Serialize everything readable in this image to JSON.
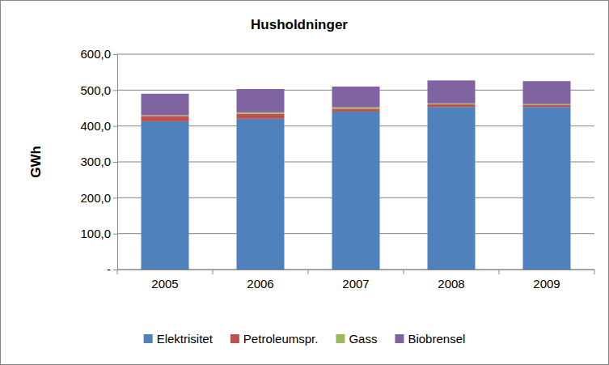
{
  "chart_data": {
    "type": "bar",
    "title": "Husholdninger",
    "y_label": "GWh",
    "categories": [
      "2005",
      "2006",
      "2007",
      "2008",
      "2009"
    ],
    "series": [
      {
        "name": "Elektrisitet",
        "color": "#4f81bd",
        "values": [
          413,
          420,
          440,
          453,
          453
        ]
      },
      {
        "name": "Petroleumspr.",
        "color": "#c0504d",
        "values": [
          15,
          14,
          8,
          7,
          5
        ]
      },
      {
        "name": "Gass",
        "color": "#9bbb59",
        "values": [
          2,
          4,
          4,
          3,
          3
        ]
      },
      {
        "name": "Biobrensel",
        "color": "#8064a2",
        "values": [
          60,
          65,
          58,
          64,
          64
        ]
      }
    ],
    "stacked": true,
    "ylim": [
      0,
      600
    ],
    "yticks": [
      {
        "value": 0,
        "label": "-"
      },
      {
        "value": 100,
        "label": "100,0"
      },
      {
        "value": 200,
        "label": "200,0"
      },
      {
        "value": 300,
        "label": "300,0"
      },
      {
        "value": 400,
        "label": "400,0"
      },
      {
        "value": 500,
        "label": "500,0"
      },
      {
        "value": 600,
        "label": "600,0"
      }
    ],
    "grid": true,
    "legend": "bottom"
  }
}
